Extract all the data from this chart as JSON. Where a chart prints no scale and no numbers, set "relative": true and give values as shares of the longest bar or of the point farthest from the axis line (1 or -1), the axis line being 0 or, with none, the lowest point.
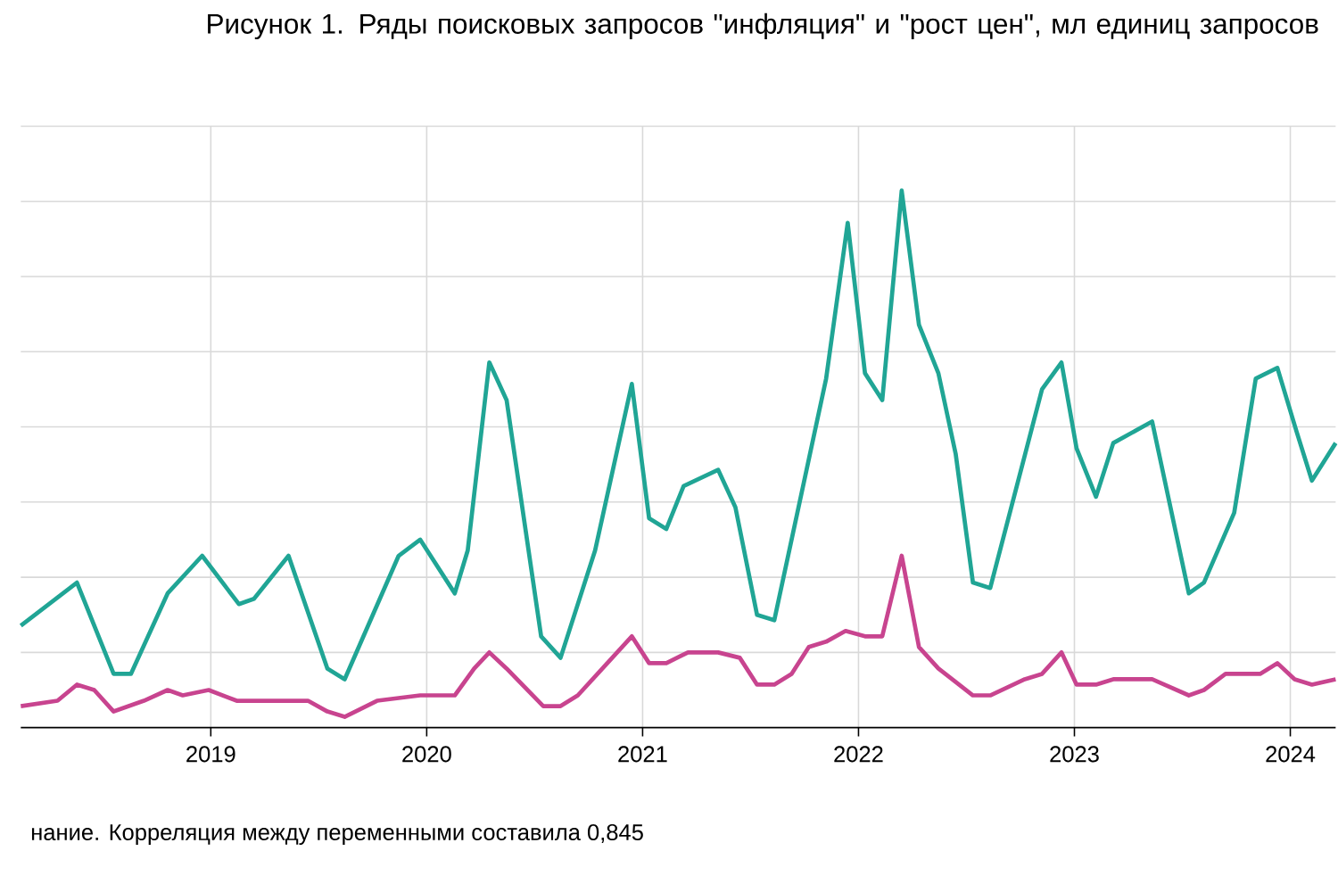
{
  "chart_data": {
    "type": "line",
    "title": "Рисунок 1. Ряды поисковых запросов \"инфляция\" и \"рост цен\", мл единиц запросов",
    "annotations": [
      "нание. Корреляция между переменными составила 0,845"
    ],
    "relative": true,
    "grid": true,
    "xlim": [
      2018.12,
      2024.21
    ],
    "xticks": [
      2019,
      2020,
      2021,
      2022,
      2023,
      2024
    ],
    "series": [
      {
        "color": "#20a595",
        "x": [
          2018.12,
          2018.38,
          2018.55,
          2018.63,
          2018.8,
          2018.96,
          2019.13,
          2019.2,
          2019.36,
          2019.54,
          2019.62,
          2019.87,
          2019.97,
          2020.13,
          2020.19,
          2020.29,
          2020.37,
          2020.53,
          2020.62,
          2020.78,
          2020.95,
          2021.03,
          2021.11,
          2021.19,
          2021.35,
          2021.43,
          2021.53,
          2021.61,
          2021.85,
          2021.95,
          2022.03,
          2022.11,
          2022.2,
          2022.28,
          2022.37,
          2022.45,
          2022.53,
          2022.61,
          2022.85,
          2022.94,
          2023.01,
          2023.1,
          2023.18,
          2023.36,
          2023.53,
          2023.6,
          2023.74,
          2023.84,
          2023.94,
          2024.03,
          2024.1,
          2024.21
        ],
        "values": [
          0.19,
          0.27,
          0.1,
          0.1,
          0.25,
          0.32,
          0.23,
          0.24,
          0.32,
          0.11,
          0.09,
          0.32,
          0.35,
          0.25,
          0.33,
          0.68,
          0.61,
          0.17,
          0.13,
          0.33,
          0.64,
          0.39,
          0.37,
          0.45,
          0.48,
          0.41,
          0.21,
          0.2,
          0.65,
          0.94,
          0.66,
          0.61,
          1.0,
          0.75,
          0.66,
          0.51,
          0.27,
          0.26,
          0.63,
          0.68,
          0.52,
          0.43,
          0.53,
          0.57,
          0.25,
          0.27,
          0.4,
          0.65,
          0.67,
          0.55,
          0.46,
          0.53
        ]
      },
      {
        "color": "#c8448f",
        "x": [
          2018.12,
          2018.29,
          2018.38,
          2018.46,
          2018.55,
          2018.69,
          2018.8,
          2018.87,
          2018.99,
          2019.12,
          2019.28,
          2019.38,
          2019.45,
          2019.54,
          2019.62,
          2019.77,
          2019.97,
          2020.13,
          2020.22,
          2020.29,
          2020.37,
          2020.54,
          2020.62,
          2020.7,
          2020.95,
          2021.03,
          2021.11,
          2021.21,
          2021.35,
          2021.45,
          2021.53,
          2021.61,
          2021.69,
          2021.77,
          2021.85,
          2021.94,
          2022.03,
          2022.11,
          2022.2,
          2022.28,
          2022.37,
          2022.53,
          2022.61,
          2022.77,
          2022.85,
          2022.94,
          2023.01,
          2023.1,
          2023.18,
          2023.36,
          2023.53,
          2023.6,
          2023.7,
          2023.86,
          2023.94,
          2024.02,
          2024.1,
          2024.21
        ],
        "values": [
          0.04,
          0.05,
          0.08,
          0.07,
          0.03,
          0.05,
          0.07,
          0.06,
          0.07,
          0.05,
          0.05,
          0.05,
          0.05,
          0.03,
          0.02,
          0.05,
          0.06,
          0.06,
          0.11,
          0.14,
          0.11,
          0.04,
          0.04,
          0.06,
          0.17,
          0.12,
          0.12,
          0.14,
          0.14,
          0.13,
          0.08,
          0.08,
          0.1,
          0.15,
          0.16,
          0.18,
          0.17,
          0.17,
          0.32,
          0.15,
          0.11,
          0.06,
          0.06,
          0.09,
          0.1,
          0.14,
          0.08,
          0.08,
          0.09,
          0.09,
          0.06,
          0.07,
          0.1,
          0.1,
          0.12,
          0.09,
          0.08,
          0.09
        ]
      }
    ]
  }
}
